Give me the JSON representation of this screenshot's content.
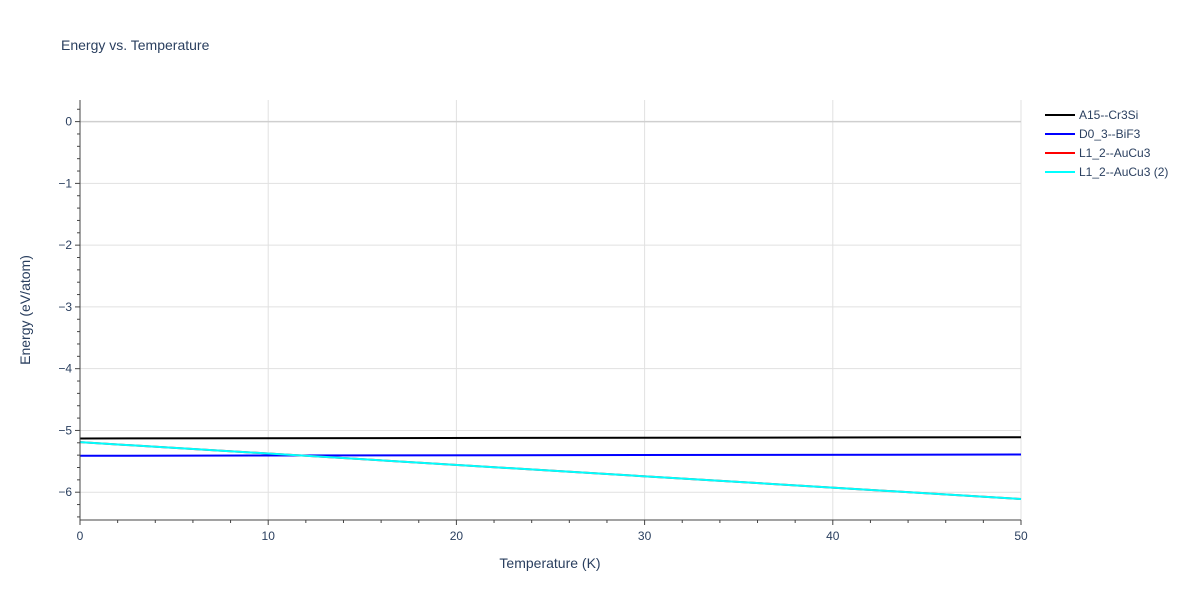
{
  "chart_data": {
    "type": "line",
    "title": "Energy vs. Temperature",
    "xlabel": "Temperature (K)",
    "ylabel": "Energy (eV/atom)",
    "xlim": [
      0,
      50
    ],
    "ylim": [
      -6.45,
      0.35
    ],
    "xticks": [
      0,
      10,
      20,
      30,
      40,
      50
    ],
    "xtick_labels": [
      "0",
      "10",
      "20",
      "30",
      "40",
      "50"
    ],
    "yticks": [
      0,
      -1,
      -2,
      -3,
      -4,
      -5,
      -6
    ],
    "ytick_labels": [
      "0",
      "−1",
      "−2",
      "−3",
      "−4",
      "−5",
      "−6"
    ],
    "grid": true,
    "legend_position": "top-right outside",
    "series": [
      {
        "name": "A15--Cr3Si",
        "color": "#000000",
        "x": [
          0,
          50
        ],
        "y": [
          -5.13,
          -5.11
        ]
      },
      {
        "name": "D0_3--BiF3",
        "color": "#0000ff",
        "x": [
          0,
          50
        ],
        "y": [
          -5.41,
          -5.39
        ]
      },
      {
        "name": "L1_2--AuCu3",
        "color": "#ff0000",
        "x": [
          0,
          50
        ],
        "y": [
          -5.19,
          -6.11
        ]
      },
      {
        "name": "L1_2--AuCu3 (2)",
        "color": "#00ffff",
        "x": [
          0,
          50
        ],
        "y": [
          -5.19,
          -6.11
        ]
      }
    ]
  }
}
